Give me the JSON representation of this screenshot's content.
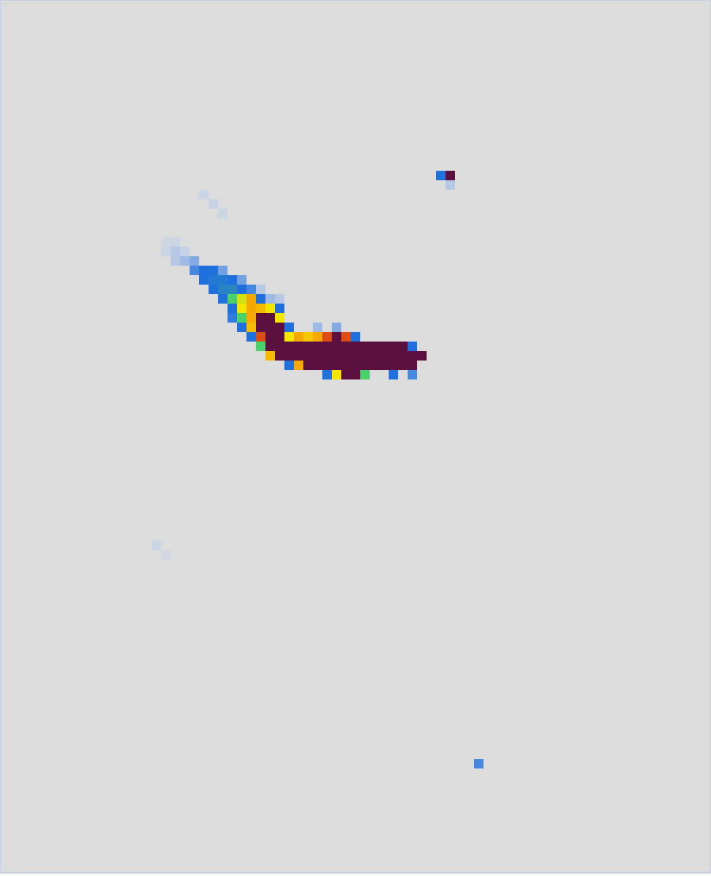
{
  "chart_data": {
    "type": "heatmap",
    "tick_labels": false,
    "grid": false,
    "xlim": [
      0,
      75
    ],
    "ylim": [
      0,
      92
    ],
    "color_range": [
      0,
      1
    ],
    "cells": [
      [
        21,
        20,
        0.08
      ],
      [
        22,
        21,
        0.1
      ],
      [
        23,
        22,
        0.08
      ],
      [
        17,
        25,
        0.06
      ],
      [
        18,
        25,
        0.08
      ],
      [
        17,
        26,
        0.08
      ],
      [
        18,
        26,
        0.12
      ],
      [
        19,
        26,
        0.1
      ],
      [
        18,
        27,
        0.12
      ],
      [
        19,
        27,
        0.15
      ],
      [
        20,
        27,
        0.18
      ],
      [
        16,
        57,
        0.08
      ],
      [
        17,
        58,
        0.06
      ],
      [
        50,
        80,
        0.25
      ],
      [
        27,
        30,
        0.12
      ],
      [
        28,
        31,
        0.15
      ],
      [
        29,
        31,
        0.12
      ],
      [
        33,
        34,
        0.15
      ],
      [
        35,
        34,
        0.18
      ],
      [
        46,
        18,
        0.3
      ],
      [
        47,
        18,
        1
      ],
      [
        47,
        19,
        0.12
      ],
      [
        20,
        28,
        0.25
      ],
      [
        21,
        28,
        0.3
      ],
      [
        22,
        28,
        0.3
      ],
      [
        23,
        28,
        0.2
      ],
      [
        21,
        29,
        0.3
      ],
      [
        22,
        29,
        0.32
      ],
      [
        23,
        29,
        0.32
      ],
      [
        24,
        29,
        0.3
      ],
      [
        25,
        29,
        0.2
      ],
      [
        22,
        30,
        0.3
      ],
      [
        23,
        30,
        0.34
      ],
      [
        24,
        30,
        0.35
      ],
      [
        25,
        30,
        0.3
      ],
      [
        26,
        30,
        0.25
      ],
      [
        23,
        31,
        0.3
      ],
      [
        24,
        31,
        0.5
      ],
      [
        25,
        31,
        0.62
      ],
      [
        26,
        31,
        0.75
      ],
      [
        27,
        31,
        0.3
      ],
      [
        24,
        32,
        0.3
      ],
      [
        25,
        32,
        0.65
      ],
      [
        26,
        32,
        0.75
      ],
      [
        27,
        32,
        0.72
      ],
      [
        28,
        32,
        0.65
      ],
      [
        29,
        32,
        0.3
      ],
      [
        24,
        33,
        0.28
      ],
      [
        25,
        33,
        0.5
      ],
      [
        26,
        33,
        0.75
      ],
      [
        27,
        33,
        1
      ],
      [
        28,
        33,
        1
      ],
      [
        29,
        33,
        0.65
      ],
      [
        25,
        34,
        0.3
      ],
      [
        26,
        34,
        0.72
      ],
      [
        27,
        34,
        1
      ],
      [
        28,
        34,
        1
      ],
      [
        29,
        34,
        1
      ],
      [
        30,
        34,
        0.3
      ],
      [
        26,
        35,
        0.3
      ],
      [
        27,
        35,
        0.85
      ],
      [
        28,
        35,
        1
      ],
      [
        29,
        35,
        1
      ],
      [
        30,
        35,
        0.65
      ],
      [
        31,
        35,
        0.75
      ],
      [
        32,
        35,
        0.7
      ],
      [
        33,
        35,
        0.75
      ],
      [
        34,
        35,
        0.85
      ],
      [
        35,
        35,
        1
      ],
      [
        36,
        35,
        0.85
      ],
      [
        37,
        35,
        0.3
      ],
      [
        27,
        36,
        0.5
      ],
      [
        28,
        36,
        1
      ],
      [
        29,
        36,
        1
      ],
      [
        30,
        36,
        1
      ],
      [
        31,
        36,
        1
      ],
      [
        32,
        36,
        1
      ],
      [
        33,
        36,
        1
      ],
      [
        34,
        36,
        1
      ],
      [
        35,
        36,
        1
      ],
      [
        36,
        36,
        1
      ],
      [
        37,
        36,
        1
      ],
      [
        38,
        36,
        1
      ],
      [
        39,
        36,
        1
      ],
      [
        40,
        36,
        1
      ],
      [
        41,
        36,
        1
      ],
      [
        42,
        36,
        1
      ],
      [
        43,
        36,
        0.3
      ],
      [
        28,
        37,
        0.72
      ],
      [
        29,
        37,
        1
      ],
      [
        30,
        37,
        1
      ],
      [
        31,
        37,
        1
      ],
      [
        32,
        37,
        1
      ],
      [
        33,
        37,
        1
      ],
      [
        34,
        37,
        1
      ],
      [
        35,
        37,
        1
      ],
      [
        36,
        37,
        1
      ],
      [
        37,
        37,
        1
      ],
      [
        38,
        37,
        1
      ],
      [
        39,
        37,
        1
      ],
      [
        40,
        37,
        1
      ],
      [
        41,
        37,
        1
      ],
      [
        42,
        37,
        1
      ],
      [
        43,
        37,
        1
      ],
      [
        44,
        37,
        1
      ],
      [
        30,
        38,
        0.3
      ],
      [
        31,
        38,
        0.75
      ],
      [
        32,
        38,
        1
      ],
      [
        33,
        38,
        1
      ],
      [
        34,
        38,
        1
      ],
      [
        35,
        38,
        1
      ],
      [
        36,
        38,
        1
      ],
      [
        37,
        38,
        1
      ],
      [
        38,
        38,
        1
      ],
      [
        39,
        38,
        1
      ],
      [
        40,
        38,
        1
      ],
      [
        41,
        38,
        1
      ],
      [
        42,
        38,
        1
      ],
      [
        43,
        38,
        1
      ],
      [
        34,
        39,
        0.3
      ],
      [
        35,
        39,
        0.65
      ],
      [
        36,
        39,
        1
      ],
      [
        37,
        39,
        1
      ],
      [
        38,
        39,
        0.5
      ],
      [
        41,
        39,
        0.3
      ],
      [
        43,
        39,
        0.25
      ]
    ]
  }
}
